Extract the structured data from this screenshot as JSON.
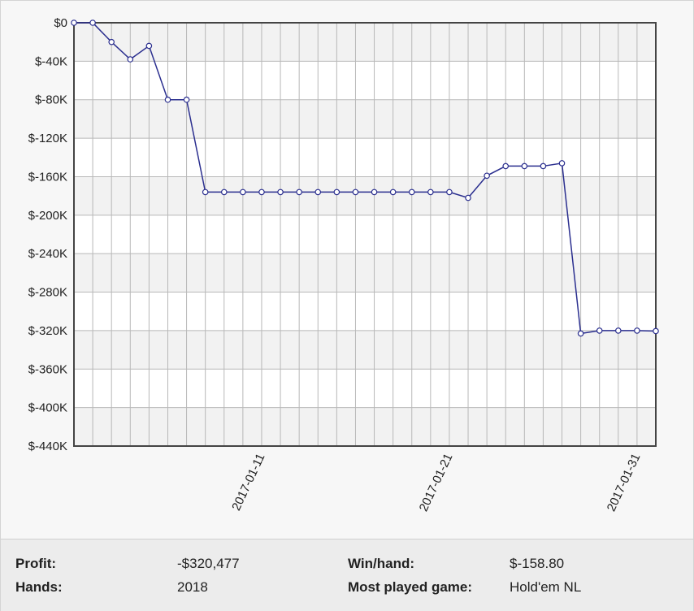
{
  "chart_data": {
    "type": "line",
    "y_ticks": [
      "$0",
      "$-40K",
      "$-80K",
      "$-120K",
      "$-160K",
      "$-200K",
      "$-240K",
      "$-280K",
      "$-320K",
      "$-360K",
      "$-400K",
      "$-440K"
    ],
    "x_ticks": [
      "2017-01-11",
      "2017-01-21",
      "2017-01-31"
    ],
    "ylim": [
      -440000,
      0
    ],
    "xlim": [
      "2017-01-01",
      "2017-02-01"
    ],
    "grid": true,
    "series": [
      {
        "color": "#2b2f8f",
        "points": [
          {
            "x": "2017-01-01",
            "y": 0
          },
          {
            "x": "2017-01-02",
            "y": 0
          },
          {
            "x": "2017-01-03",
            "y": -20000
          },
          {
            "x": "2017-01-04",
            "y": -38000
          },
          {
            "x": "2017-01-05",
            "y": -24000
          },
          {
            "x": "2017-01-06",
            "y": -80000
          },
          {
            "x": "2017-01-07",
            "y": -80000
          },
          {
            "x": "2017-01-08",
            "y": -176000
          },
          {
            "x": "2017-01-09",
            "y": -176000
          },
          {
            "x": "2017-01-10",
            "y": -176000
          },
          {
            "x": "2017-01-11",
            "y": -176000
          },
          {
            "x": "2017-01-12",
            "y": -176000
          },
          {
            "x": "2017-01-13",
            "y": -176000
          },
          {
            "x": "2017-01-14",
            "y": -176000
          },
          {
            "x": "2017-01-15",
            "y": -176000
          },
          {
            "x": "2017-01-16",
            "y": -176000
          },
          {
            "x": "2017-01-17",
            "y": -176000
          },
          {
            "x": "2017-01-18",
            "y": -176000
          },
          {
            "x": "2017-01-19",
            "y": -176000
          },
          {
            "x": "2017-01-20",
            "y": -176000
          },
          {
            "x": "2017-01-21",
            "y": -176000
          },
          {
            "x": "2017-01-22",
            "y": -182000
          },
          {
            "x": "2017-01-23",
            "y": -159000
          },
          {
            "x": "2017-01-24",
            "y": -149000
          },
          {
            "x": "2017-01-25",
            "y": -149000
          },
          {
            "x": "2017-01-26",
            "y": -149000
          },
          {
            "x": "2017-01-27",
            "y": -146000
          },
          {
            "x": "2017-01-28",
            "y": -323000
          },
          {
            "x": "2017-01-29",
            "y": -320000
          },
          {
            "x": "2017-01-30",
            "y": -320000
          },
          {
            "x": "2017-01-31",
            "y": -320000
          },
          {
            "x": "2017-02-01",
            "y": -320477
          }
        ]
      }
    ]
  },
  "stats": {
    "profit_label": "Profit:",
    "profit_value": "-$320,477",
    "hands_label": "Hands:",
    "hands_value": "2018",
    "winhand_label": "Win/hand:",
    "winhand_value": "$-158.80",
    "game_label": "Most played game:",
    "game_value": "Hold'em NL"
  }
}
